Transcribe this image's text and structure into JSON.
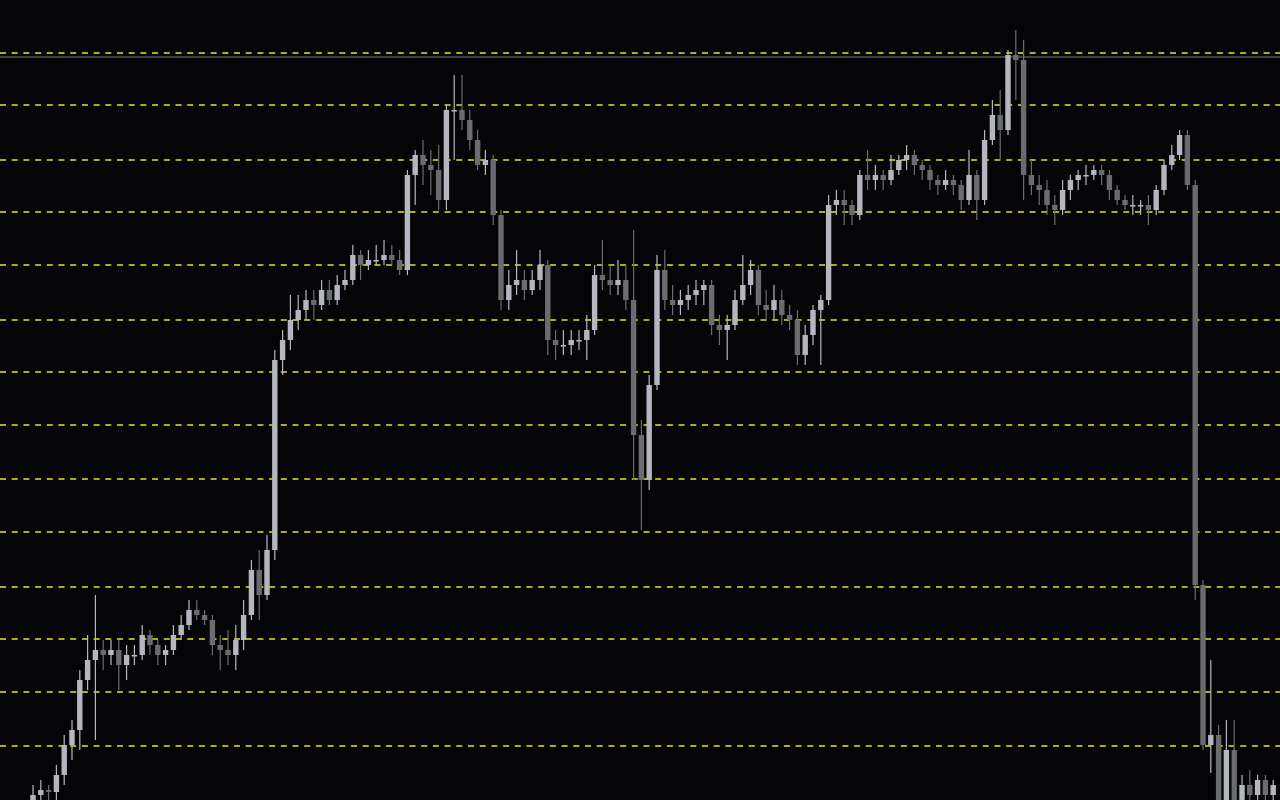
{
  "chart_data": {
    "type": "candlestick",
    "title": "",
    "xlabel": "",
    "ylabel": "",
    "grid": false,
    "colors": {
      "background": "#050507",
      "bull": "#b4b7bf",
      "bear": "#6b6c70",
      "level_line": "#e6e61e",
      "price_line": "#3c3f46"
    },
    "ylim": [
      0,
      80
    ],
    "levels": [
      74.7,
      69.5,
      64,
      58.8,
      53.5,
      48,
      42.8,
      37.5,
      32.1,
      26.8,
      21.3,
      16.1,
      10.8,
      5.4
    ],
    "price_line": 74.3,
    "ohlc": [
      [
        0,
        1.5,
        -0.5,
        0.5
      ],
      [
        0.5,
        2,
        0,
        1
      ],
      [
        1,
        1.5,
        0,
        0.8
      ],
      [
        0.8,
        3.5,
        0,
        2.5
      ],
      [
        2.5,
        6.5,
        1.5,
        5.5
      ],
      [
        5.5,
        8,
        4,
        7
      ],
      [
        7,
        13,
        5,
        12
      ],
      [
        12,
        16.5,
        11,
        14
      ],
      [
        14,
        20.5,
        6,
        15
      ],
      [
        15,
        16,
        13,
        14.5
      ],
      [
        14.5,
        16,
        13.5,
        15
      ],
      [
        15,
        16,
        11,
        13.5
      ],
      [
        13.5,
        15.5,
        12,
        14.5
      ],
      [
        14.5,
        15.5,
        13.5,
        14.5
      ],
      [
        14.5,
        17.5,
        14,
        16.5
      ],
      [
        16.5,
        17,
        14.5,
        15.5
      ],
      [
        15.5,
        16,
        13.5,
        14.5
      ],
      [
        14.5,
        15.5,
        13.5,
        15
      ],
      [
        15,
        17.5,
        14.5,
        16.5
      ],
      [
        16.5,
        18.5,
        16,
        17.5
      ],
      [
        17.5,
        20,
        17,
        19
      ],
      [
        19,
        20,
        18,
        18.5
      ],
      [
        18.5,
        19,
        17.5,
        18
      ],
      [
        18,
        18.5,
        14.5,
        15.5
      ],
      [
        15.5,
        16.5,
        13,
        15
      ],
      [
        15,
        17,
        13.5,
        14.5
      ],
      [
        14.5,
        17.5,
        13,
        16
      ],
      [
        16,
        20,
        15,
        18.5
      ],
      [
        18.5,
        24,
        18,
        23
      ],
      [
        23,
        25,
        18,
        20.5
      ],
      [
        20.5,
        26.5,
        20,
        25
      ],
      [
        25,
        45,
        24,
        44
      ],
      [
        44,
        47,
        42.5,
        46
      ],
      [
        46,
        50.5,
        45,
        48
      ],
      [
        48,
        50.5,
        47,
        49
      ],
      [
        49,
        51,
        48,
        50
      ],
      [
        50,
        51,
        48,
        49.5
      ],
      [
        49.5,
        52,
        49,
        51
      ],
      [
        51,
        52,
        49.5,
        50
      ],
      [
        50,
        52.5,
        49.5,
        51.5
      ],
      [
        51.5,
        53,
        51,
        52
      ],
      [
        52,
        55.5,
        51.5,
        54.5
      ],
      [
        54.5,
        55,
        52,
        53.5
      ],
      [
        53.5,
        55,
        53,
        54
      ],
      [
        54,
        55.5,
        53.5,
        54
      ],
      [
        54,
        56,
        53.5,
        54.5
      ],
      [
        54.5,
        55.5,
        53.5,
        54
      ],
      [
        54,
        55,
        52.5,
        53
      ],
      [
        53,
        63,
        52.5,
        62.5
      ],
      [
        62.5,
        65,
        59.5,
        64.5
      ],
      [
        64.5,
        66,
        61.5,
        63.5
      ],
      [
        63.5,
        65,
        60.5,
        63
      ],
      [
        63,
        65.5,
        59,
        60
      ],
      [
        60,
        69.5,
        59,
        69
      ],
      [
        69,
        72.5,
        64,
        69
      ],
      [
        69,
        72.5,
        67,
        68
      ],
      [
        68,
        69,
        65,
        66
      ],
      [
        66,
        67,
        63,
        63.5
      ],
      [
        63.5,
        65,
        62.5,
        64
      ],
      [
        64,
        64.5,
        57.5,
        58.5
      ],
      [
        58.5,
        59,
        49,
        50
      ],
      [
        50,
        53,
        49,
        51.5
      ],
      [
        51.5,
        55,
        50.5,
        52
      ],
      [
        52,
        53,
        50,
        51
      ],
      [
        51,
        53,
        50.5,
        52
      ],
      [
        52,
        55,
        51,
        53.5
      ],
      [
        53.5,
        54,
        44.5,
        46
      ],
      [
        46,
        47,
        44,
        45.5
      ],
      [
        45.5,
        47,
        44.5,
        45.5
      ],
      [
        45.5,
        47,
        44.5,
        46
      ],
      [
        46,
        47,
        45,
        46
      ],
      [
        46,
        48.5,
        44,
        47
      ],
      [
        47,
        53.5,
        46.5,
        52.5
      ],
      [
        52.5,
        56,
        51,
        52
      ],
      [
        52,
        53.5,
        50.5,
        51.5
      ],
      [
        51.5,
        54,
        50.5,
        52
      ],
      [
        52,
        53.5,
        49,
        50
      ],
      [
        50,
        57,
        32,
        36.5
      ],
      [
        36.5,
        38,
        27,
        32
      ],
      [
        32,
        42.5,
        31,
        41.5
      ],
      [
        41.5,
        54.5,
        41,
        53
      ],
      [
        53,
        55,
        49,
        50
      ],
      [
        50,
        51.5,
        48.5,
        49.5
      ],
      [
        49.5,
        51,
        48.5,
        50
      ],
      [
        50,
        51.5,
        49,
        50.5
      ],
      [
        50.5,
        52,
        49.5,
        51
      ],
      [
        51,
        52,
        49.5,
        51.5
      ],
      [
        51.5,
        52,
        46.5,
        47.5
      ],
      [
        47.5,
        48.5,
        45.5,
        47
      ],
      [
        47,
        48.5,
        44,
        47.5
      ],
      [
        47.5,
        51,
        47,
        50
      ],
      [
        50,
        54.5,
        49.5,
        51.5
      ],
      [
        51.5,
        54,
        50.5,
        53
      ],
      [
        53,
        53.5,
        48.5,
        49.5
      ],
      [
        49.5,
        51,
        48,
        49
      ],
      [
        49,
        51.5,
        48,
        50
      ],
      [
        50,
        51,
        47.5,
        48.5
      ],
      [
        48.5,
        49.5,
        47,
        48
      ],
      [
        48,
        49,
        43.5,
        44.5
      ],
      [
        44.5,
        47.5,
        43.5,
        46.5
      ],
      [
        46.5,
        49.5,
        45.5,
        49
      ],
      [
        49,
        50.5,
        43.5,
        50
      ],
      [
        50,
        60.5,
        49.5,
        59.5
      ],
      [
        59.5,
        61,
        58.5,
        60
      ],
      [
        60,
        61,
        57.5,
        59.5
      ],
      [
        59.5,
        60,
        57.5,
        58.5
      ],
      [
        58.5,
        63,
        58,
        62.5
      ],
      [
        62.5,
        65,
        61,
        62
      ],
      [
        62,
        63.5,
        61,
        62.5
      ],
      [
        62.5,
        63,
        61,
        62
      ],
      [
        62,
        64.5,
        61.5,
        63
      ],
      [
        63,
        64.5,
        62.5,
        64
      ],
      [
        64,
        65.5,
        63,
        64.5
      ],
      [
        64.5,
        65,
        62.5,
        63.5
      ],
      [
        63.5,
        64,
        62,
        63
      ],
      [
        63,
        63.5,
        61,
        62
      ],
      [
        62,
        62.5,
        60.5,
        61.5
      ],
      [
        61.5,
        63,
        61,
        62
      ],
      [
        62,
        62.5,
        60.5,
        61.5
      ],
      [
        61.5,
        62,
        59,
        60
      ],
      [
        60,
        65,
        59.5,
        62.5
      ],
      [
        62.5,
        63,
        58,
        60
      ],
      [
        60,
        67,
        59.5,
        66
      ],
      [
        66,
        70,
        65.5,
        68.5
      ],
      [
        68.5,
        71,
        64,
        67
      ],
      [
        67,
        75,
        66.5,
        74.5
      ],
      [
        74.5,
        77,
        70,
        74
      ],
      [
        74,
        76,
        60,
        62.5
      ],
      [
        62.5,
        64,
        60.5,
        61.5
      ],
      [
        61.5,
        62.5,
        59.5,
        61
      ],
      [
        61,
        62,
        58.5,
        59.5
      ],
      [
        59.5,
        60.5,
        57.5,
        59
      ],
      [
        59,
        62,
        58.5,
        61
      ],
      [
        61,
        62.5,
        60,
        62
      ],
      [
        62,
        63,
        61,
        62.5
      ],
      [
        62.5,
        63.5,
        61.5,
        62.5
      ],
      [
        62.5,
        63.5,
        62,
        63
      ],
      [
        63,
        63.5,
        61.5,
        62.5
      ],
      [
        62.5,
        63,
        60,
        61
      ],
      [
        61,
        61.5,
        59.5,
        60
      ],
      [
        60,
        60.5,
        59,
        59.5
      ],
      [
        59.5,
        60.5,
        58.5,
        59.5
      ],
      [
        59.5,
        60,
        58.5,
        59.5
      ],
      [
        59.5,
        60.5,
        57.5,
        59
      ],
      [
        59,
        61.5,
        58.5,
        61
      ],
      [
        61,
        64,
        60.5,
        63.5
      ],
      [
        63.5,
        65.5,
        63,
        64.5
      ],
      [
        64.5,
        67,
        64,
        66.5
      ],
      [
        66.5,
        67,
        61,
        61.5
      ],
      [
        61.5,
        62,
        20,
        21.5
      ],
      [
        21.5,
        22,
        5,
        5.5
      ],
      [
        5.5,
        14,
        2.7,
        6.5
      ],
      [
        6.5,
        7.5,
        -1,
        0
      ],
      [
        0,
        8,
        -1,
        5
      ],
      [
        5,
        8,
        -1,
        0
      ],
      [
        0,
        2.5,
        -1,
        1.5
      ],
      [
        1.5,
        3,
        -1,
        0.5
      ],
      [
        0.5,
        2.5,
        -1,
        2
      ],
      [
        2,
        2.5,
        -1,
        0.5
      ],
      [
        0.5,
        2,
        -1,
        1.5
      ]
    ]
  }
}
